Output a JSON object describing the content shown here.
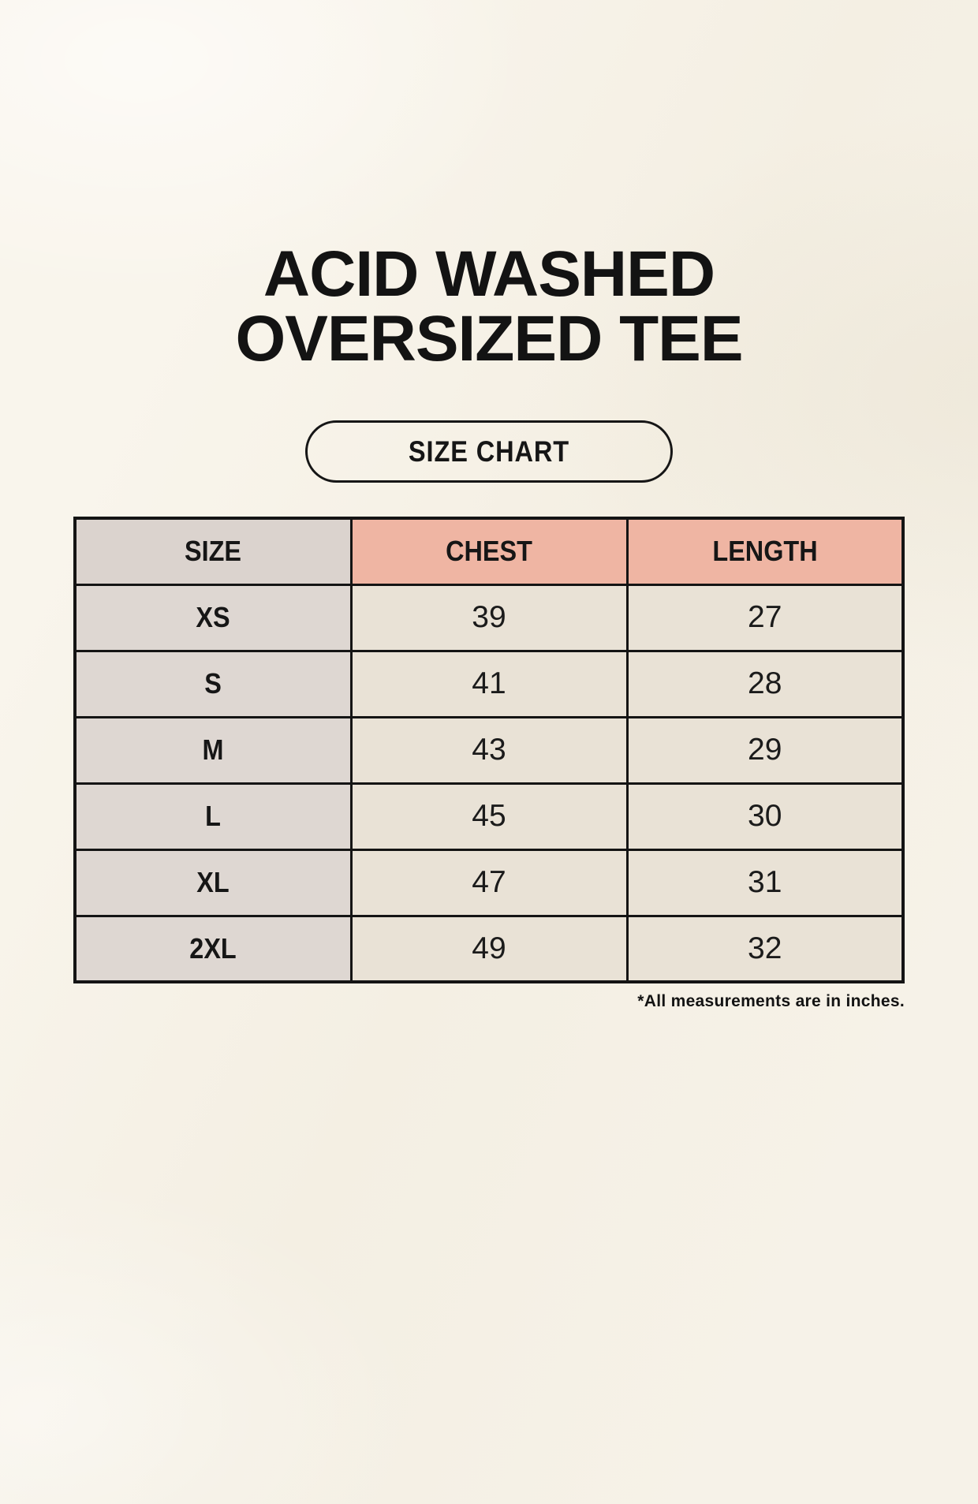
{
  "page": {
    "title_line1": "ACID WASHED",
    "title_line2": "OVERSIZED TEE",
    "size_chart_button_label": "SIZE CHART",
    "footnote": "*All measurements are in inches."
  },
  "table": {
    "headers": {
      "size": "SIZE",
      "chest": "CHEST",
      "length": "LENGTH"
    },
    "rows": [
      {
        "size": "XS",
        "chest": "39",
        "length": "27"
      },
      {
        "size": "S",
        "chest": "41",
        "length": "28"
      },
      {
        "size": "M",
        "chest": "43",
        "length": "29"
      },
      {
        "size": "L",
        "chest": "45",
        "length": "30"
      },
      {
        "size": "XL",
        "chest": "47",
        "length": "31"
      },
      {
        "size": "2XL",
        "chest": "49",
        "length": "32"
      }
    ]
  },
  "colors": {
    "background": "#f6f2e8",
    "table_border": "#141414",
    "size_column_header_bg": "#dbd3ce",
    "size_column_bg": "#ded7d2",
    "accent_header_bg": "#efb5a3",
    "data_cell_bg": "#e9e2d6",
    "text": "#161616"
  },
  "chart_data": {
    "type": "table",
    "title": "ACID WASHED OVERSIZED TEE - SIZE CHART",
    "columns": [
      "SIZE",
      "CHEST",
      "LENGTH"
    ],
    "rows": [
      [
        "XS",
        39,
        27
      ],
      [
        "S",
        41,
        28
      ],
      [
        "M",
        43,
        29
      ],
      [
        "L",
        45,
        30
      ],
      [
        "XL",
        47,
        31
      ],
      [
        "2XL",
        49,
        32
      ]
    ],
    "units": "inches",
    "note": "*All measurements are in inches."
  }
}
